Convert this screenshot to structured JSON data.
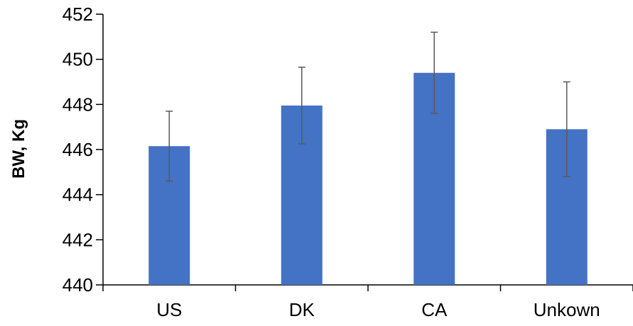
{
  "chart_data": {
    "type": "bar",
    "title": "",
    "xlabel": "",
    "ylabel": "BW, Kg",
    "categories": [
      "US",
      "DK",
      "CA",
      "Unkown"
    ],
    "series": [
      {
        "values": [
          446.15,
          447.95,
          449.4,
          446.9
        ],
        "error": [
          1.55,
          1.7,
          1.8,
          2.1
        ],
        "color": "#4472c4"
      }
    ],
    "ylim": [
      440,
      452
    ],
    "yticks": [
      440,
      442,
      444,
      446,
      448,
      450,
      452
    ],
    "ytick_labels": [
      "440",
      "442",
      "444",
      "446",
      "448",
      "450",
      "452"
    ],
    "grid": false,
    "legend": "none"
  }
}
